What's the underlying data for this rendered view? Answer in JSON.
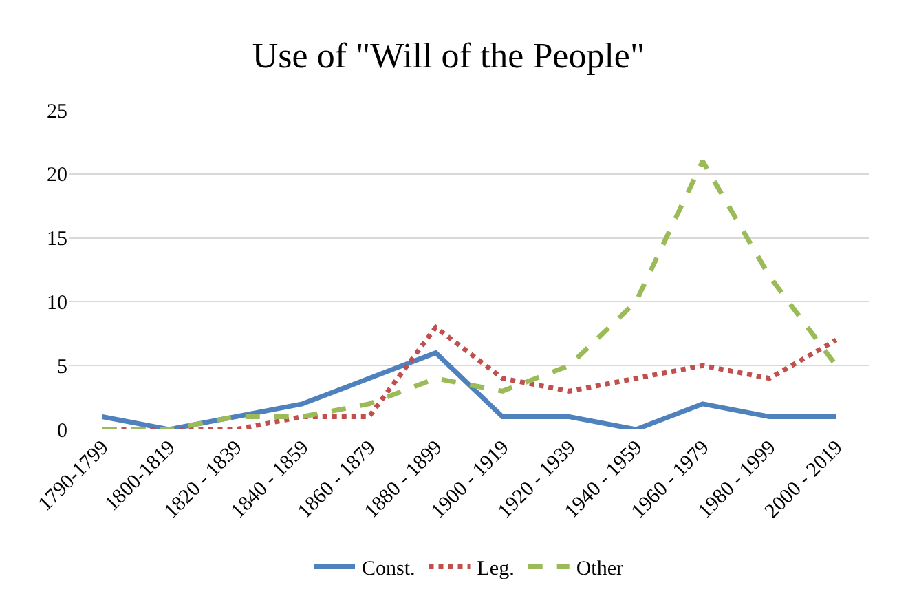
{
  "chart_data": {
    "type": "line",
    "title": "Use of \"Will of the People\"",
    "categories": [
      "1790-1799",
      "1800-1819",
      "1820 - 1839",
      "1840 - 1859",
      "1860 - 1879",
      "1880 - 1899",
      "1900 - 1919",
      "1920 - 1939",
      "1940 - 1959",
      "1960 - 1979",
      "1980 - 1999",
      "2000 - 2019"
    ],
    "series": [
      {
        "name": "Const.",
        "color": "#4f81bd",
        "line_style": "solid",
        "values": [
          1,
          0,
          1,
          2,
          4,
          6,
          1,
          1,
          0,
          2,
          1,
          1
        ]
      },
      {
        "name": "Leg.",
        "color": "#c0504d",
        "line_style": "dotted",
        "values": [
          0,
          0,
          0,
          1,
          1,
          8,
          4,
          3,
          4,
          5,
          4,
          7
        ]
      },
      {
        "name": "Other",
        "color": "#9bbb59",
        "line_style": "dashed",
        "values": [
          0,
          0,
          1,
          1,
          2,
          4,
          3,
          5,
          10,
          21,
          12,
          5
        ]
      }
    ],
    "ylim": [
      0,
      25
    ],
    "yticks": [
      0,
      5,
      10,
      15,
      20,
      25
    ],
    "grid": "y",
    "legend": "bottom",
    "marker": "none"
  }
}
